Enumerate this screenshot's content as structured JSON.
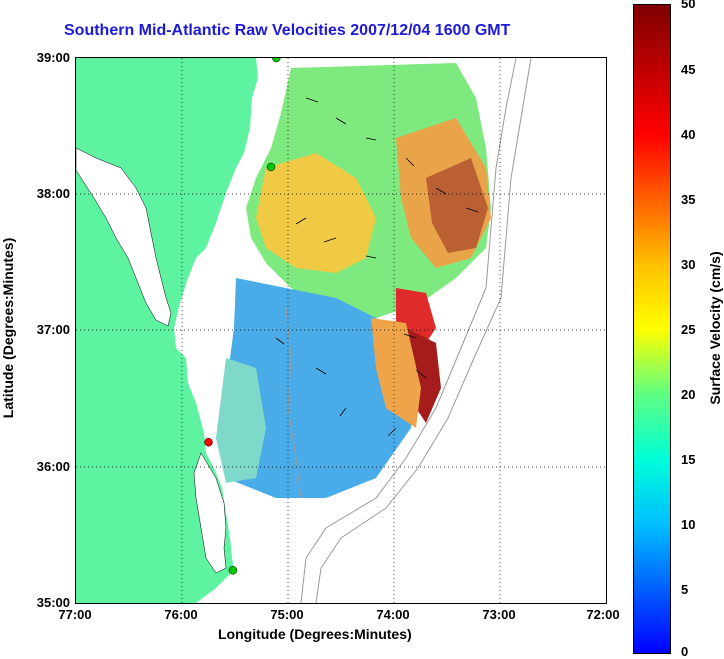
{
  "title": "Southern Mid-Atlantic Raw Velocities 2007/12/04 1600 GMT",
  "x_axis": {
    "label": "Longitude (Degrees:Minutes)",
    "ticks": [
      "77:00",
      "76:00",
      "75:00",
      "74:00",
      "73:00",
      "72:00"
    ]
  },
  "y_axis": {
    "label": "Latitude (Degrees:Minutes)",
    "ticks": [
      "39:00",
      "38:00",
      "37:00",
      "36:00",
      "35:00"
    ]
  },
  "colorbar": {
    "label": "Surface Velocity (cm/s)",
    "ticks": [
      "50",
      "45",
      "40",
      "35",
      "30",
      "25",
      "20",
      "15",
      "10",
      "5",
      "0"
    ],
    "min": 0,
    "max": 50
  },
  "colors": {
    "land": "#5ef3a0",
    "title": "#1d1ad8",
    "grid": "#000000",
    "bathymetry": "#9a9a9a"
  },
  "map_extent": {
    "lon": [
      -77,
      -72
    ],
    "lat": [
      35,
      39
    ]
  },
  "stations": [
    {
      "name": "green-station-north",
      "lon": -75.11,
      "lat": 39.0,
      "color": "#00c800"
    },
    {
      "name": "green-station-mid",
      "lon": -75.16,
      "lat": 38.2,
      "color": "#00c800"
    },
    {
      "name": "red-station",
      "lon": -75.75,
      "lat": 36.18,
      "color": "#ff0000"
    },
    {
      "name": "green-station-south",
      "lon": -75.52,
      "lat": 35.24,
      "color": "#00c800"
    }
  ]
}
